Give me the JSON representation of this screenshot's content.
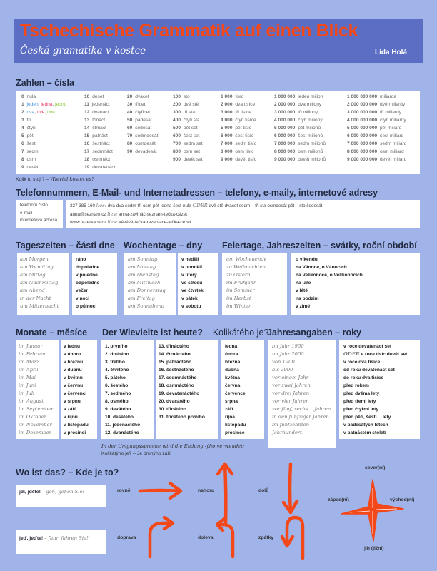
{
  "header": {
    "title": "Tschechische Grammatik auf einen Blick",
    "subtitle": "Česká gramatika v kostce",
    "author": "Lída Holá"
  },
  "colors": {
    "accent": "#f2481a",
    "band": "#5c6ec4",
    "background": "#a0b4ea",
    "gender": [
      "#3b8fe0",
      "#f0406a",
      "#8cc83a"
    ]
  },
  "numbers": {
    "heading": "Zahlen – čísla",
    "columns": [
      [
        {
          "n": "0",
          "w": "nula"
        },
        {
          "n": "1",
          "w": [
            "jeden",
            "jedna",
            "jedno"
          ]
        },
        {
          "n": "2",
          "w": [
            "dva",
            "dvě",
            "dvě"
          ]
        },
        {
          "n": "3",
          "w": "tři"
        },
        {
          "n": "4",
          "w": "čtyři"
        },
        {
          "n": "5",
          "w": "pět"
        },
        {
          "n": "6",
          "w": "šest"
        },
        {
          "n": "7",
          "w": "sedm"
        },
        {
          "n": "8",
          "w": "osm"
        },
        {
          "n": "9",
          "w": "devět"
        }
      ],
      [
        {
          "n": "10",
          "w": "deset"
        },
        {
          "n": "11",
          "w": "jedenáct"
        },
        {
          "n": "12",
          "w": "dvanáct"
        },
        {
          "n": "13",
          "w": "třináct"
        },
        {
          "n": "14",
          "w": "čtrnáct"
        },
        {
          "n": "15",
          "w": "patnáct"
        },
        {
          "n": "16",
          "w": "šestnáct"
        },
        {
          "n": "17",
          "w": "sedmnáct"
        },
        {
          "n": "18",
          "w": "osmnáct"
        },
        {
          "n": "19",
          "w": "devatenáct"
        }
      ],
      [
        {
          "n": "20",
          "w": "dvacet"
        },
        {
          "n": "30",
          "w": "třicet"
        },
        {
          "n": "40",
          "w": "čtyřicet"
        },
        {
          "n": "50",
          "w": "padesát"
        },
        {
          "n": "60",
          "w": "šedesát"
        },
        {
          "n": "70",
          "w": "sedmdesát"
        },
        {
          "n": "80",
          "w": "osmdesát"
        },
        {
          "n": "90",
          "w": "devadesát"
        }
      ],
      [
        {
          "n": "100",
          "w": "sto"
        },
        {
          "n": "200",
          "w": "dvě stě"
        },
        {
          "n": "300",
          "w": "tři sta"
        },
        {
          "n": "400",
          "w": "čtyři sta"
        },
        {
          "n": "500",
          "w": "pět set"
        },
        {
          "n": "600",
          "w": "šest set"
        },
        {
          "n": "700",
          "w": "sedm set"
        },
        {
          "n": "800",
          "w": "osm set"
        },
        {
          "n": "900",
          "w": "devět set"
        }
      ],
      [
        {
          "n": "1 000",
          "w": "tisíc"
        },
        {
          "n": "2 000",
          "w": "dva tisíce"
        },
        {
          "n": "3 000",
          "w": "tři tisíce"
        },
        {
          "n": "4 000",
          "w": "čtyři tisíce"
        },
        {
          "n": "5 000",
          "w": "pět tisíc"
        },
        {
          "n": "6 000",
          "w": "šest tisíc"
        },
        {
          "n": "7 000",
          "w": "sedm tisíc"
        },
        {
          "n": "8 000",
          "w": "osm tisíc"
        },
        {
          "n": "9 000",
          "w": "devět tisíc"
        }
      ],
      [
        {
          "n": "1 000 000",
          "w": "jeden milion"
        },
        {
          "n": "2 000 000",
          "w": "dva miliony"
        },
        {
          "n": "3 000 000",
          "w": "tři miliony"
        },
        {
          "n": "4 000 000",
          "w": "čtyři miliony"
        },
        {
          "n": "5 000 000",
          "w": "pět milionů"
        },
        {
          "n": "6 000 000",
          "w": "šest milionů"
        },
        {
          "n": "7 000 000",
          "w": "sedm milionů"
        },
        {
          "n": "8 000 000",
          "w": "osm milionů"
        },
        {
          "n": "9 000 000",
          "w": "devět milionů"
        }
      ],
      [
        {
          "n": "1 000 000 000",
          "w": "miliarda"
        },
        {
          "n": "2 000 000 000",
          "w": "dvě miliardy"
        },
        {
          "n": "3 000 000 000",
          "w": "tři miliardy"
        },
        {
          "n": "4 000 000 000",
          "w": "čtyři miliardy"
        },
        {
          "n": "5 000 000 000",
          "w": "pět miliard"
        },
        {
          "n": "6 000 000 000",
          "w": "šest miliard"
        },
        {
          "n": "7 000 000 000",
          "w": "sedm miliard"
        },
        {
          "n": "8 000 000 000",
          "w": "osm miliard"
        },
        {
          "n": "9 000 000 000",
          "w": "devět miliard"
        }
      ]
    ],
    "note_cz": "Kolik to stojí? –",
    "note_de": "Wieviel kostet es?"
  },
  "contacts": {
    "heading": "Telefonnummern, E-Mail- und Internetadressen – telefony, e-maily, internetové adresy",
    "labels": [
      "telefonní číslo",
      "e-mail",
      "internetová adresa"
    ],
    "rows": [
      {
        "a": "227 385 160",
        "lies": "lies:",
        "b": "dva-dva-sedm-tři-osm-pět-jedna-šest-nula",
        "oder": "ODER",
        "c": "dvě stě dvacet sedm – tři sta osmdesát pět – sto šedesát"
      },
      {
        "a": "anna@seznam.cz",
        "lies": "lies:",
        "b": "anna-zavináč-seznam-tečka-cézet",
        "oder": "",
        "c": ""
      },
      {
        "a": "www.rezervace.cz",
        "lies": "lies:",
        "b": "vévévé-tečka-rezervace-tečka-cézet",
        "oder": "",
        "c": ""
      }
    ]
  },
  "daytimes": {
    "heading": "Tageszeiten – části dne",
    "de": [
      "am Morgen",
      "am Vormittag",
      "am Mittag",
      "am Nachmittag",
      "am Abend",
      "in der Nacht",
      "um Mitternacht"
    ],
    "cz": [
      "ráno",
      "dopoledne",
      "v poledne",
      "odpoledne",
      "večer",
      "v noci",
      "o půlnoci"
    ]
  },
  "weekdays": {
    "heading": "Wochentage – dny",
    "de": [
      "am Sonntag",
      "am Montag",
      "am Dienstag",
      "am Mittwoch",
      "am Donnerstag",
      "am Freitag",
      "am Sonnabend"
    ],
    "cz": [
      "v neděli",
      "v pondělí",
      "v úterý",
      "ve středu",
      "ve čtvrtek",
      "v pátek",
      "v sobotu"
    ]
  },
  "holidays": {
    "heading": "Feiertage, Jahreszeiten – svátky, roční období",
    "de": [
      "am Wochenende",
      "zu Weihnachten",
      "zu Ostern",
      "im Frühjahr",
      "im Sommer",
      "im Herbst",
      "im Winter"
    ],
    "cz": [
      "o víkendu",
      "na Vánoce, o Vánocích",
      "na Velikonoce, o Velikonocích",
      "na jaře",
      "v létě",
      "na podzim",
      "v zimě"
    ]
  },
  "months": {
    "heading": "Monate – měsíce",
    "de": [
      "im Januar",
      "im Februar",
      "im März",
      "im April",
      "im Mai",
      "im Juni",
      "im Juli",
      "im August",
      "im September",
      "im Oktober",
      "im November",
      "im Dezember"
    ],
    "cz": [
      "v lednu",
      "v únoru",
      "v březnu",
      "v dubnu",
      "v květnu",
      "v červnu",
      "v červenci",
      "v srpnu",
      "v září",
      "v říjnu",
      "v listopadu",
      "v prosinci"
    ]
  },
  "dates": {
    "heading": "Der Wievielte ist heute?",
    "heading_cz": "– Kolikátého je?",
    "ordinals1": [
      "1. prvního",
      "2. druhého",
      "3. třetího",
      "4. čtvrtého",
      "5. pátého",
      "6. šestého",
      "7. sedmého",
      "8. osmého",
      "9. devátého",
      "10. desátého",
      "11. jedenáctého",
      "12. dvanáctého"
    ],
    "ordinals2": [
      "13. třináctého",
      "14. čtrnáctého",
      "15. patnáctého",
      "16. šestnáctého",
      "17. sedmnáctého",
      "18. osmnáctého",
      "19. devatenáctého",
      "20. dvacátého",
      "30. třicátého",
      "31. třicátého prvního"
    ],
    "months_gen": [
      "ledna",
      "února",
      "března",
      "dubna",
      "května",
      "června",
      "července",
      "srpna",
      "září",
      "října",
      "listopadu",
      "prosince"
    ],
    "note_de": "In der Umgangssprache wird die Endung -ýho verwendet:",
    "note_cz": "Kolikátýho je? – Je druhýho září."
  },
  "years": {
    "heading": "Jahresangaben – roky",
    "de": [
      "im Jahr 1900",
      "",
      "im Jahr 2000",
      "von 1900",
      "bis 2000",
      "vor einem Jahr",
      "vor zwei Jahren",
      "vor drei Jahren",
      "vor vier Jahren",
      "vor fünf, sechs… Jahren",
      "in den fünfziger Jahren",
      "im fünfzehnten",
      "Jahrhundert"
    ],
    "cz": [
      "v roce devatenáct set",
      "v roce tisíc devět set",
      "v roce dva tisíce",
      "od roku devatenáct set",
      "do roku dva tisíce",
      "před rokem",
      "před dvěma lety",
      "před třemi lety",
      "před čtyřmi lety",
      "před pěti, šesti… lety",
      "v padesátých letech",
      "v patnáctém století"
    ],
    "oder": "ODER"
  },
  "directions": {
    "heading": "Wo ist das? – Kde je to?",
    "go_cz": "jdi, jděte!",
    "go_de": "– geh, gehen Sie!",
    "drive_cz": "jeď, jeďte!",
    "drive_de": "– fahr, fahren Sie!",
    "labels": {
      "straight": "rovně",
      "up": "nahoru",
      "down": "dolů",
      "right": "doprava",
      "left": "doleva",
      "back": "zpátky"
    },
    "compass": {
      "north": "sever(ní)",
      "west": "západ(ní)",
      "east": "východ(ní)",
      "south": "jih (jižní)"
    }
  }
}
